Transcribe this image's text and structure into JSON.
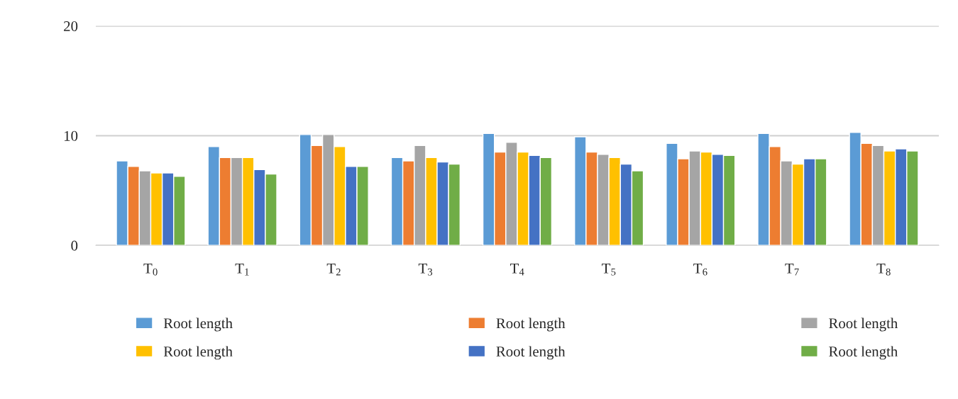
{
  "chart_data": {
    "type": "bar",
    "categories": [
      "T$_{0}$",
      "T$_{1}$",
      "T$_{2}$",
      "T$_{3}$",
      "T$_{4}$",
      "T$_{5}$",
      "T$_{6}$",
      "T$_{7}$",
      "T$_{8}$"
    ],
    "series": [
      {
        "name": "Root length",
        "color": "#5b9bd5",
        "values": [
          7.7,
          9.0,
          10.1,
          8.0,
          10.2,
          9.9,
          9.3,
          10.2,
          10.3
        ]
      },
      {
        "name": "Root length",
        "color": "#ed7d31",
        "values": [
          7.2,
          8.0,
          9.1,
          7.7,
          8.5,
          8.5,
          7.9,
          9.0,
          9.3
        ]
      },
      {
        "name": "Root length",
        "color": "#a5a5a5",
        "values": [
          6.8,
          8.0,
          10.1,
          9.1,
          9.4,
          8.3,
          8.6,
          7.7,
          9.1
        ]
      },
      {
        "name": "Root length",
        "color": "#ffc000",
        "values": [
          6.6,
          8.0,
          9.0,
          8.0,
          8.5,
          8.0,
          8.5,
          7.4,
          8.6
        ]
      },
      {
        "name": "Root length",
        "color": "#4472c4",
        "values": [
          6.6,
          6.9,
          7.2,
          7.6,
          8.2,
          7.4,
          8.3,
          7.9,
          8.8
        ]
      },
      {
        "name": "Root length",
        "color": "#70ad47",
        "values": [
          6.3,
          6.5,
          7.2,
          7.4,
          8.0,
          6.8,
          8.2,
          7.9,
          8.6
        ]
      }
    ],
    "ylim": [
      0,
      20
    ],
    "yticks": [
      0,
      10,
      20
    ],
    "grid": "y",
    "legend": "bottom"
  }
}
